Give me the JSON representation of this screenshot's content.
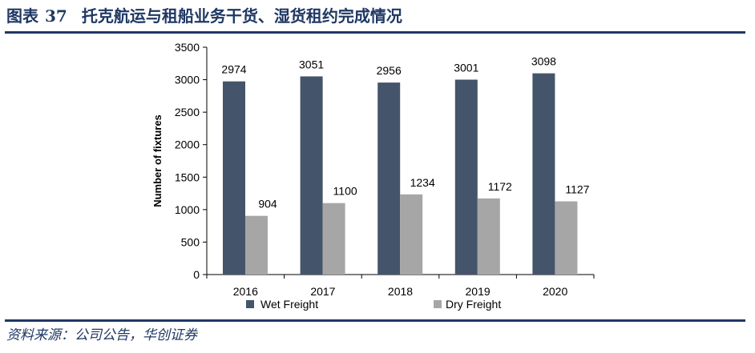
{
  "figure": {
    "label": "图表",
    "number": "37",
    "title": "托克航运与租船业务干货、湿货租约完成情况",
    "source": "资料来源：公司公告，华创证券"
  },
  "colors": {
    "accent": "#1f3864",
    "wet": "#44546a",
    "dry": "#a6a6a6"
  },
  "chart_data": {
    "type": "bar",
    "title": "",
    "xlabel": "",
    "ylabel": "Number of fixtures",
    "categories": [
      "2016",
      "2017",
      "2018",
      "2019",
      "2020"
    ],
    "series": [
      {
        "name": "Wet Freight",
        "values": [
          2974,
          3051,
          2956,
          3001,
          3098
        ]
      },
      {
        "name": "Dry Freight",
        "values": [
          904,
          1100,
          1234,
          1172,
          1127
        ]
      }
    ],
    "ylim": [
      0,
      3500
    ],
    "yticks": [
      0,
      500,
      1000,
      1500,
      2000,
      2500,
      3000,
      3500
    ],
    "grid": false,
    "legend": "bottom",
    "data_labels": true
  }
}
